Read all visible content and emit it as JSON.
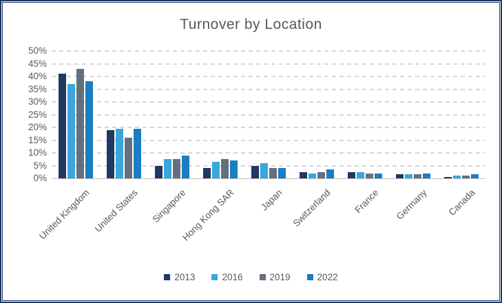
{
  "title": "Turnover by Location",
  "colors": {
    "border": "#1F3864",
    "title_text": "#595959",
    "axis_text": "#595959",
    "gridline": "#D6D6D6",
    "axis_line": "#BFBFBF"
  },
  "chart_data": {
    "type": "bar",
    "title": "Turnover by Location",
    "categories": [
      "United Kingdom",
      "United States",
      "Singapore",
      "Hong Kong SAR",
      "Japan",
      "Switzerland",
      "France",
      "Germany",
      "Canada"
    ],
    "series": [
      {
        "name": "2013",
        "color": "#1F3864",
        "values": [
          41,
          19,
          5,
          4,
          5,
          2.5,
          2.5,
          1.5,
          0.5
        ]
      },
      {
        "name": "2016",
        "color": "#3BA6DC",
        "values": [
          37,
          19.5,
          7.5,
          6.5,
          6,
          2,
          2.5,
          1.5,
          1
        ]
      },
      {
        "name": "2019",
        "color": "#64707E",
        "values": [
          43,
          16,
          7.5,
          7.5,
          4,
          2.5,
          2,
          1.5,
          1
        ]
      },
      {
        "name": "2022",
        "color": "#1B7DC2",
        "values": [
          38,
          19.5,
          9,
          7,
          4,
          3.5,
          2,
          2,
          1.5
        ]
      }
    ],
    "xlabel": "",
    "ylabel": "",
    "ylim": [
      0,
      50
    ],
    "ytick_step": 5,
    "ytick_labels": [
      "0%",
      "5%",
      "10%",
      "15%",
      "20%",
      "25%",
      "30%",
      "35%",
      "40%",
      "45%",
      "50%"
    ],
    "grid": "horizontal-dashed",
    "legend_position": "bottom",
    "bar_label_rotation_deg": -45
  }
}
